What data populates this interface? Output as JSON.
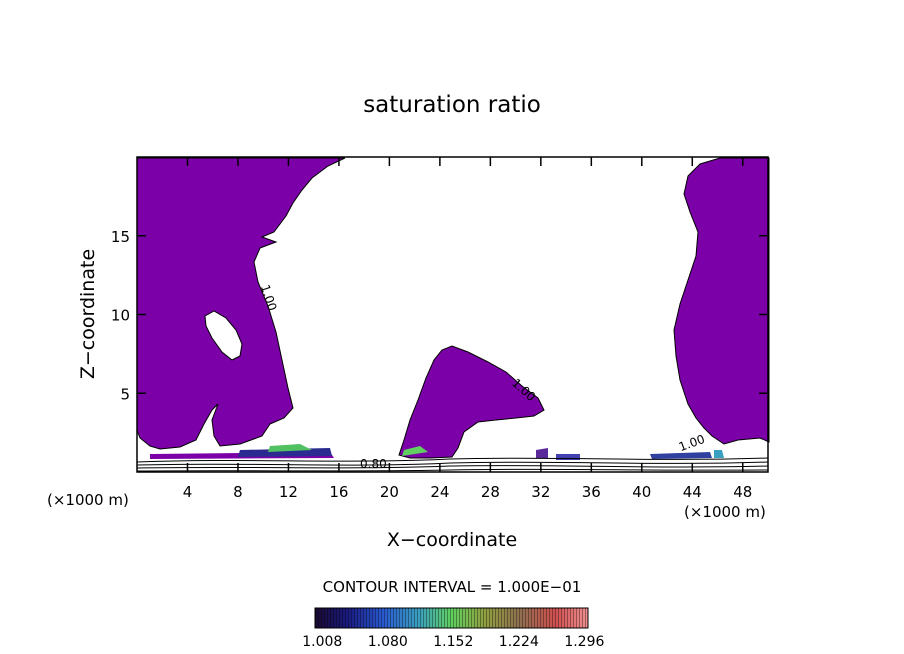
{
  "chart_data": {
    "type": "contour",
    "title": "saturation ratio",
    "xlabel": "X−coordinate",
    "ylabel": "Z−coordinate",
    "x_unit_left": "(×1000 m)",
    "x_unit_right": "(×1000 m)",
    "xlim": [
      0,
      50
    ],
    "ylim": [
      0,
      20
    ],
    "x_ticks": [
      "4",
      "8",
      "12",
      "16",
      "20",
      "24",
      "28",
      "32",
      "36",
      "40",
      "44",
      "48"
    ],
    "y_ticks": [
      "5",
      "10",
      "15"
    ],
    "contour_labels": [
      "1.00",
      "1.00",
      "1.00",
      "0.80",
      "1.00"
    ],
    "contour_interval_text": "CONTOUR INTERVAL = 1.000E−01",
    "colorbar": {
      "ticks": [
        "1.008",
        "1.080",
        "1.152",
        "1.224",
        "1.296"
      ],
      "range": [
        1.0,
        1.3
      ]
    },
    "fill_color": "#7b00a8"
  }
}
